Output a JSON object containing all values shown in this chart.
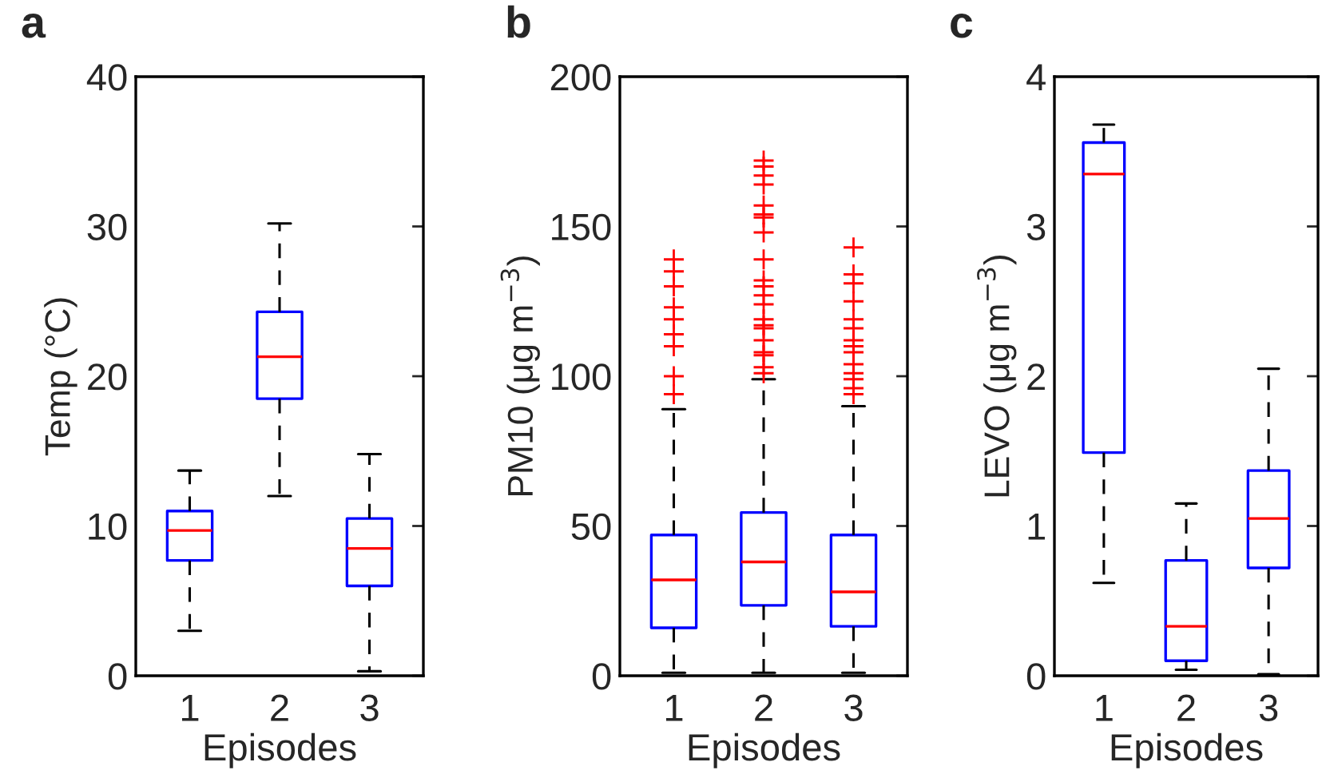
{
  "chart_data": [
    {
      "type": "box",
      "title": "a",
      "xlabel": "Episodes",
      "ylabel": "Temp (°C)",
      "categories": [
        "1",
        "2",
        "3"
      ],
      "ylim": [
        0,
        40
      ],
      "yticks": [
        0,
        10,
        20,
        30,
        40
      ],
      "boxes": [
        {
          "low": 3,
          "q1": 7.7,
          "median": 9.7,
          "q3": 11,
          "high": 13.7
        },
        {
          "low": 12,
          "q1": 18.5,
          "median": 21.3,
          "q3": 24.3,
          "high": 30.2
        },
        {
          "low": 0.3,
          "q1": 6,
          "median": 8.5,
          "q3": 10.5,
          "high": 14.8
        }
      ]
    },
    {
      "type": "box",
      "title": "b",
      "xlabel": "Episodes",
      "ylabel": "PM10 (μg m$^{−3}$)",
      "categories": [
        "1",
        "2",
        "3"
      ],
      "ylim": [
        0,
        200
      ],
      "yticks": [
        0,
        50,
        100,
        150,
        200
      ],
      "boxes": [
        {
          "low": 1,
          "q1": 16,
          "median": 32,
          "q3": 47,
          "high": 89,
          "outliers": [
            94,
            100,
            110,
            114,
            119,
            123,
            130,
            135,
            139
          ]
        },
        {
          "low": 1,
          "q1": 23.5,
          "median": 38,
          "q3": 54.5,
          "high": 99,
          "outliers": [
            101,
            103,
            107,
            108,
            112,
            116,
            117,
            119,
            124,
            127,
            130,
            132,
            139,
            148,
            153,
            154,
            157,
            164,
            167,
            170,
            172
          ]
        },
        {
          "low": 1,
          "q1": 16.5,
          "median": 28,
          "q3": 47,
          "high": 90,
          "outliers": [
            94,
            96,
            99,
            101,
            104,
            108,
            110,
            112,
            116,
            119,
            125,
            131,
            134,
            143
          ]
        }
      ]
    },
    {
      "type": "box",
      "title": "c",
      "xlabel": "Episodes",
      "ylabel": "LEVO (μg m$^{−3}$)",
      "categories": [
        "1",
        "2",
        "3"
      ],
      "ylim": [
        0,
        4
      ],
      "yticks": [
        0,
        1,
        2,
        3,
        4
      ],
      "boxes": [
        {
          "low": 0.62,
          "q1": 1.49,
          "median": 3.35,
          "q3": 3.56,
          "high": 3.68
        },
        {
          "low": 0.04,
          "q1": 0.1,
          "median": 0.33,
          "q3": 0.77,
          "high": 1.15
        },
        {
          "low": 0.01,
          "q1": 0.72,
          "median": 1.05,
          "q3": 1.37,
          "high": 2.05
        }
      ]
    }
  ]
}
